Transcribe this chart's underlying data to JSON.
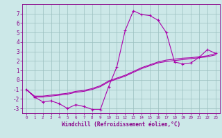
{
  "xlabel": "Windchill (Refroidissement éolien,°C)",
  "hours": [
    0,
    1,
    2,
    3,
    4,
    5,
    6,
    7,
    8,
    9,
    10,
    11,
    12,
    13,
    14,
    15,
    16,
    17,
    18,
    19,
    20,
    21,
    22,
    23
  ],
  "temp_curve": [
    -1.0,
    -1.8,
    -2.3,
    -2.2,
    -2.5,
    -3.0,
    -2.6,
    -2.8,
    -3.1,
    -3.1,
    -0.7,
    1.4,
    5.2,
    7.3,
    6.9,
    6.8,
    6.3,
    5.0,
    1.9,
    1.7,
    1.8,
    2.4,
    3.2,
    2.8
  ],
  "diag1": [
    -1.0,
    -1.7,
    -1.7,
    -1.6,
    -1.5,
    -1.4,
    -1.2,
    -1.1,
    -0.9,
    -0.6,
    -0.1,
    0.2,
    0.5,
    0.9,
    1.3,
    1.6,
    1.9,
    2.1,
    2.2,
    2.3,
    2.35,
    2.45,
    2.55,
    2.8
  ],
  "diag2": [
    -1.0,
    -1.8,
    -1.8,
    -1.7,
    -1.6,
    -1.5,
    -1.3,
    -1.2,
    -1.0,
    -0.7,
    -0.2,
    0.1,
    0.4,
    0.8,
    1.2,
    1.5,
    1.8,
    1.95,
    2.05,
    2.15,
    2.25,
    2.35,
    2.45,
    2.65
  ],
  "line_color": "#aa00aa",
  "bg_color": "#cce8e8",
  "grid_color": "#9bbfbf",
  "ylim": [
    -3.5,
    8.0
  ],
  "xlim": [
    -0.5,
    23.5
  ],
  "yticks": [
    -3,
    -2,
    -1,
    0,
    1,
    2,
    3,
    4,
    5,
    6,
    7
  ],
  "xticks": [
    0,
    1,
    2,
    3,
    4,
    5,
    6,
    7,
    8,
    9,
    10,
    11,
    12,
    13,
    14,
    15,
    16,
    17,
    18,
    19,
    20,
    21,
    22,
    23
  ],
  "tick_color": "#880088",
  "label_color": "#880088"
}
